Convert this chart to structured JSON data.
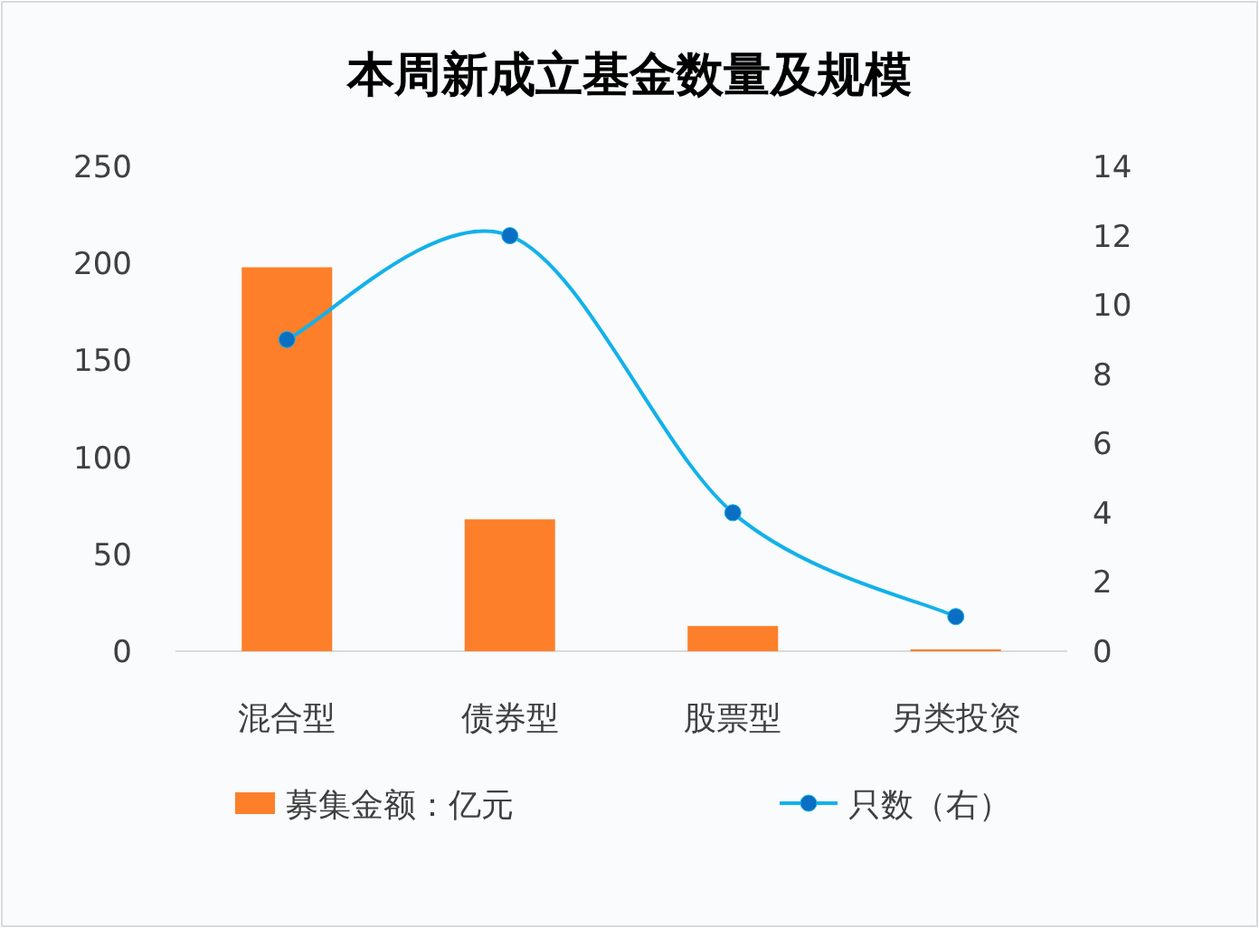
{
  "chart_data": {
    "type": "bar",
    "title": "本周新成立基金数量及规模",
    "categories": [
      "混合型",
      "债券型",
      "股票型",
      "另类投资"
    ],
    "series": [
      {
        "name": "募集金额：亿元",
        "color": "#fe7f2a",
        "values": [
          198,
          68,
          13,
          1
        ]
      },
      {
        "name": "只数（右）",
        "type": "line",
        "axis": "y2",
        "color": "#13b1e9",
        "values": [
          9,
          12,
          4,
          1
        ]
      }
    ],
    "ylim": [
      0,
      250
    ],
    "yticks": [
      0,
      50,
      100,
      150,
      200,
      250
    ],
    "y2lim": [
      0,
      14
    ],
    "y2ticks": [
      0,
      2,
      4,
      6,
      8,
      10,
      12,
      14
    ],
    "legend": "bottom",
    "marker": "circle",
    "line_style": "solid"
  }
}
